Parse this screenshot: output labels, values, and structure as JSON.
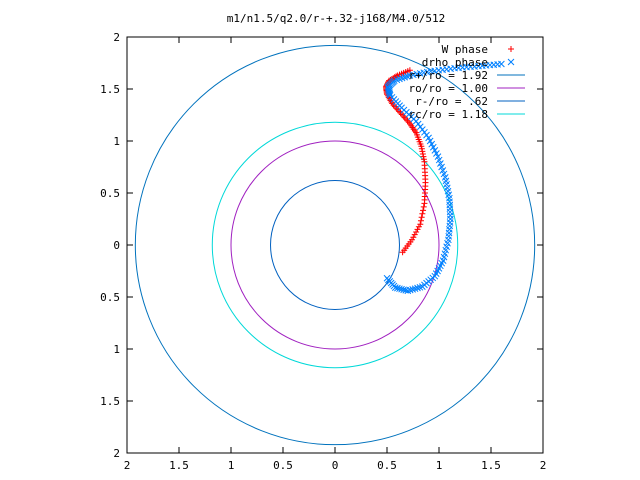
{
  "chart_data": {
    "type": "scatter",
    "title": "m1/n1.5/q2.0/r-+.32-j168/M4.0/512",
    "xlabel": "",
    "ylabel": "",
    "xlim": [
      -2,
      2
    ],
    "ylim": [
      -2,
      2
    ],
    "grid": false,
    "legend_position": "top-right",
    "x_ticks": [
      {
        "value": -2,
        "label": "2"
      },
      {
        "value": -1.5,
        "label": "1.5"
      },
      {
        "value": -1,
        "label": "1"
      },
      {
        "value": -0.5,
        "label": "0.5"
      },
      {
        "value": 0,
        "label": "0"
      },
      {
        "value": 0.5,
        "label": "0.5"
      },
      {
        "value": 1,
        "label": "1"
      },
      {
        "value": 1.5,
        "label": "1.5"
      },
      {
        "value": 2,
        "label": "2"
      }
    ],
    "y_ticks": [
      {
        "value": 2,
        "label": "2"
      },
      {
        "value": 1.5,
        "label": "1.5"
      },
      {
        "value": 1,
        "label": "1"
      },
      {
        "value": 0.5,
        "label": "0.5"
      },
      {
        "value": 0,
        "label": "0"
      },
      {
        "value": -0.5,
        "label": "0.5"
      },
      {
        "value": -1,
        "label": "1"
      },
      {
        "value": -1.5,
        "label": "1.5"
      },
      {
        "value": -2,
        "label": "2"
      }
    ],
    "series": [
      {
        "name": "W phase",
        "kind": "points",
        "marker": "plus",
        "color": "#ff0000",
        "x": [
          0.65,
          0.74,
          0.82,
          0.86,
          0.87,
          0.86,
          0.83,
          0.78,
          0.71,
          0.63,
          0.55,
          0.5,
          0.49,
          0.52,
          0.6,
          0.72
        ],
        "y": [
          -0.07,
          0.05,
          0.2,
          0.4,
          0.6,
          0.8,
          0.95,
          1.08,
          1.18,
          1.27,
          1.36,
          1.45,
          1.52,
          1.58,
          1.63,
          1.68
        ]
      },
      {
        "name": "drho phase",
        "kind": "points",
        "marker": "cross",
        "color": "#0080ff",
        "x": [
          0.5,
          0.58,
          0.7,
          0.84,
          0.96,
          1.04,
          1.09,
          1.11,
          1.1,
          1.06,
          0.99,
          0.9,
          0.78,
          0.64,
          0.53,
          0.51,
          0.57,
          0.72,
          0.92,
          1.15,
          1.38,
          1.6
        ],
        "y": [
          -0.32,
          -0.41,
          -0.44,
          -0.4,
          -0.3,
          -0.15,
          0.05,
          0.25,
          0.45,
          0.65,
          0.85,
          1.03,
          1.19,
          1.32,
          1.44,
          1.52,
          1.58,
          1.63,
          1.67,
          1.7,
          1.72,
          1.74
        ]
      },
      {
        "name": "r+/ro = 1.92",
        "kind": "circle",
        "radius": 1.92,
        "color": "#0072bd"
      },
      {
        "name": "ro/ro = 1.00",
        "kind": "circle",
        "radius": 1.0,
        "color": "#a020c0"
      },
      {
        "name": "r-/ro = .62",
        "kind": "circle",
        "radius": 0.62,
        "color": "#0060c0"
      },
      {
        "name": "rc/ro = 1.18",
        "kind": "circle",
        "radius": 1.18,
        "color": "#00d8d8"
      }
    ]
  }
}
